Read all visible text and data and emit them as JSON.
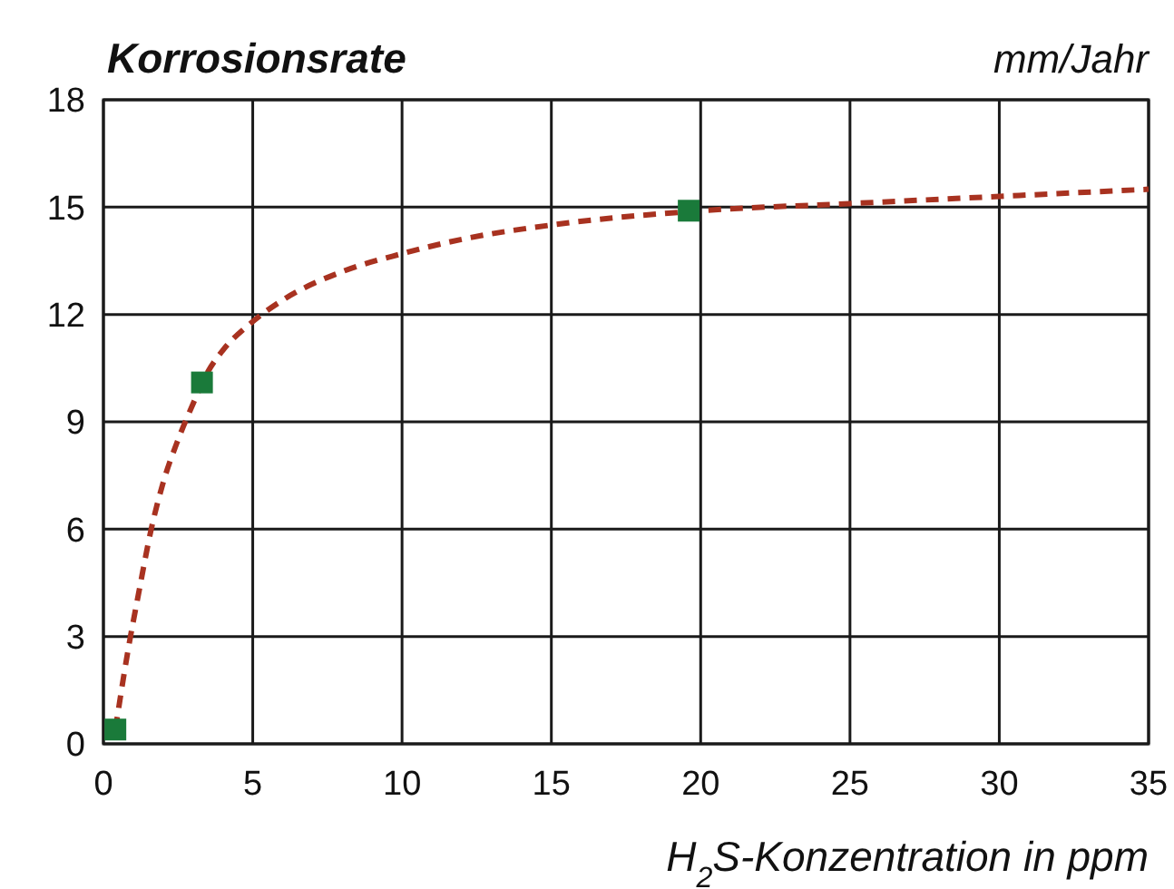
{
  "chart_data": {
    "type": "line",
    "title": "Korrosionsrate",
    "ylabel": "mm/Jahr",
    "xlabel": "H$_{2}$S-Konzentration in ppm",
    "xlim": [
      0,
      35
    ],
    "xticks": [
      0,
      5,
      10,
      15,
      20,
      25,
      30,
      35
    ],
    "ylim": [
      0,
      18
    ],
    "yticks": [
      0,
      3,
      6,
      9,
      12,
      15,
      18
    ],
    "grid": true,
    "series": [
      {
        "color": "#a83220",
        "line_style": "dashed",
        "marker": "none",
        "x": [
          0.4,
          0.8,
          1.2,
          1.6,
          2,
          2.5,
          3,
          3.5,
          4,
          5,
          6,
          8,
          10,
          12,
          15,
          20,
          25,
          30,
          35
        ],
        "values": [
          0.4,
          2.5,
          4.3,
          6,
          7.3,
          8.5,
          9.5,
          10.4,
          11,
          11.8,
          12.4,
          13.2,
          13.7,
          14.1,
          14.5,
          14.9,
          15.1,
          15.3,
          15.5
        ]
      },
      {
        "type": "scatter",
        "color": "#1a7a3a",
        "marker": "square",
        "x": [
          0.4,
          3.3,
          19.6
        ],
        "values": [
          0.4,
          10.1,
          14.9
        ]
      }
    ]
  }
}
